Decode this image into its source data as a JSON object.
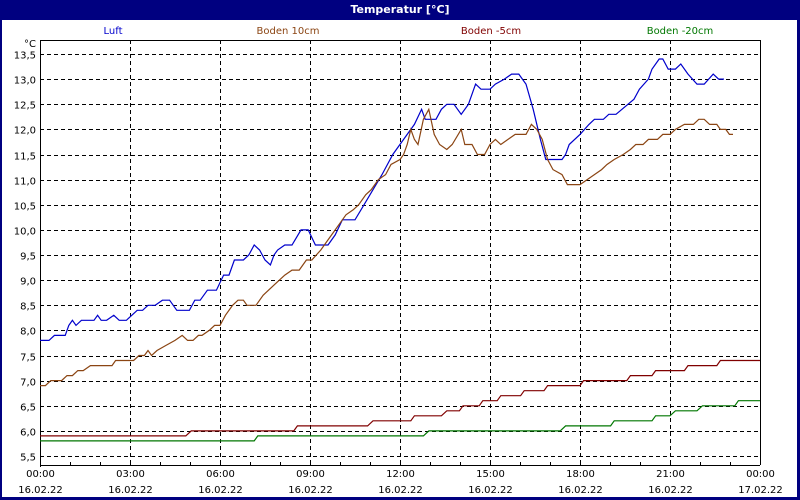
{
  "window": {
    "title": "Temperatur [°C]"
  },
  "chart_data": {
    "type": "line",
    "title": "Temperatur [°C]",
    "ylabel": "°C",
    "xlabel": "",
    "ylim": [
      5.5,
      13.5
    ],
    "y_ticks": [
      "13,5",
      "13,0",
      "12,5",
      "12,0",
      "11,5",
      "11,0",
      "10,5",
      "10,0",
      "9,5",
      "9,0",
      "8,5",
      "8,0",
      "7,5",
      "7,0",
      "6,5",
      "6,0",
      "5,5"
    ],
    "y_tick_values": [
      13.5,
      13.0,
      12.5,
      12.0,
      11.5,
      11.0,
      10.5,
      10.0,
      9.5,
      9.0,
      8.5,
      8.0,
      7.5,
      7.0,
      6.5,
      6.0,
      5.5
    ],
    "x_ticks": [
      {
        "time": "00:00",
        "date": "16.02.22",
        "hour": 0
      },
      {
        "time": "03:00",
        "date": "16.02.22",
        "hour": 3
      },
      {
        "time": "06:00",
        "date": "16.02.22",
        "hour": 6
      },
      {
        "time": "09:00",
        "date": "16.02.22",
        "hour": 9
      },
      {
        "time": "12:00",
        "date": "16.02.22",
        "hour": 12
      },
      {
        "time": "15:00",
        "date": "16.02.22",
        "hour": 15
      },
      {
        "time": "18:00",
        "date": "16.02.22",
        "hour": 18
      },
      {
        "time": "21:00",
        "date": "16.02.22",
        "hour": 21
      },
      {
        "time": "00:00",
        "date": "17.02.22",
        "hour": 24
      }
    ],
    "grid": true,
    "legend_position": "top",
    "series": [
      {
        "name": "Luft",
        "color": "#0000cc",
        "points": [
          [
            0,
            7.8
          ],
          [
            0.5,
            7.8
          ],
          [
            0.8,
            7.9
          ],
          [
            1.4,
            7.9
          ],
          [
            1.6,
            8.1
          ],
          [
            1.8,
            8.2
          ],
          [
            2.0,
            8.1
          ],
          [
            2.3,
            8.2
          ],
          [
            3.0,
            8.2
          ],
          [
            3.2,
            8.3
          ],
          [
            3.4,
            8.2
          ],
          [
            3.7,
            8.2
          ],
          [
            4.1,
            8.3
          ],
          [
            4.4,
            8.2
          ],
          [
            4.8,
            8.2
          ],
          [
            5.4,
            8.4
          ],
          [
            5.7,
            8.4
          ],
          [
            6.0,
            8.5
          ],
          [
            6.4,
            8.5
          ],
          [
            6.8,
            8.6
          ],
          [
            7.2,
            8.6
          ],
          [
            7.6,
            8.4
          ],
          [
            8.0,
            8.4
          ],
          [
            8.3,
            8.4
          ],
          [
            8.6,
            8.6
          ],
          [
            8.9,
            8.6
          ],
          [
            9.3,
            8.8
          ],
          [
            9.8,
            8.8
          ],
          [
            10.2,
            9.1
          ],
          [
            10.5,
            9.1
          ],
          [
            10.8,
            9.4
          ],
          [
            11.3,
            9.4
          ],
          [
            11.6,
            9.5
          ],
          [
            11.9,
            9.7
          ],
          [
            12.2,
            9.6
          ],
          [
            12.5,
            9.4
          ],
          [
            12.8,
            9.3
          ],
          [
            13.0,
            9.5
          ],
          [
            13.2,
            9.6
          ],
          [
            13.6,
            9.7
          ],
          [
            14.0,
            9.7
          ],
          [
            14.5,
            10.0
          ],
          [
            14.9,
            10.0
          ],
          [
            15.3,
            9.7
          ],
          [
            15.7,
            9.7
          ],
          [
            16.0,
            9.7
          ],
          [
            16.4,
            9.9
          ],
          [
            16.8,
            10.2
          ],
          [
            17.5,
            10.2
          ],
          [
            18.0,
            10.5
          ],
          [
            18.5,
            10.8
          ],
          [
            19.0,
            11.1
          ],
          [
            19.6,
            11.5
          ],
          [
            20.2,
            11.8
          ],
          [
            20.6,
            12.0
          ],
          [
            20.8,
            12.1
          ],
          [
            21.2,
            12.4
          ],
          [
            21.4,
            12.2
          ],
          [
            22.0,
            12.2
          ],
          [
            22.3,
            12.4
          ],
          [
            22.6,
            12.5
          ],
          [
            23.0,
            12.5
          ],
          [
            23.4,
            12.3
          ],
          [
            23.8,
            12.5
          ],
          [
            24.2,
            12.9
          ],
          [
            24.5,
            12.8
          ],
          [
            25.0,
            12.8
          ],
          [
            25.3,
            12.9
          ],
          [
            25.8,
            13.0
          ],
          [
            26.2,
            13.1
          ],
          [
            26.6,
            13.1
          ],
          [
            27.0,
            12.9
          ],
          [
            27.4,
            12.4
          ],
          [
            27.8,
            11.8
          ],
          [
            28.1,
            11.4
          ],
          [
            28.6,
            11.4
          ],
          [
            29.0,
            11.4
          ],
          [
            29.2,
            11.5
          ],
          [
            29.4,
            11.7
          ],
          [
            30.0,
            11.9
          ],
          [
            30.5,
            12.1
          ],
          [
            30.8,
            12.2
          ],
          [
            31.3,
            12.2
          ],
          [
            31.6,
            12.3
          ],
          [
            32.0,
            12.3
          ],
          [
            33.0,
            12.6
          ],
          [
            33.3,
            12.8
          ],
          [
            33.8,
            13.0
          ],
          [
            34.0,
            13.2
          ],
          [
            34.4,
            13.4
          ],
          [
            34.6,
            13.4
          ],
          [
            34.9,
            13.2
          ],
          [
            35.3,
            13.2
          ],
          [
            35.6,
            13.3
          ],
          [
            36.0,
            13.1
          ],
          [
            36.5,
            12.9
          ],
          [
            36.9,
            12.9
          ],
          [
            37.4,
            13.1
          ],
          [
            37.7,
            13.0
          ],
          [
            38.0,
            13.0
          ]
        ]
      },
      {
        "name": "Boden 10cm",
        "color": "#8b4513",
        "points": [
          [
            0,
            6.9
          ],
          [
            0.3,
            6.9
          ],
          [
            0.6,
            7.0
          ],
          [
            1.2,
            7.0
          ],
          [
            1.5,
            7.1
          ],
          [
            1.8,
            7.1
          ],
          [
            2.1,
            7.2
          ],
          [
            2.4,
            7.2
          ],
          [
            2.8,
            7.3
          ],
          [
            4.0,
            7.3
          ],
          [
            4.2,
            7.4
          ],
          [
            5.2,
            7.4
          ],
          [
            5.5,
            7.5
          ],
          [
            5.8,
            7.5
          ],
          [
            6.0,
            7.6
          ],
          [
            6.2,
            7.5
          ],
          [
            6.5,
            7.6
          ],
          [
            7.0,
            7.7
          ],
          [
            7.5,
            7.8
          ],
          [
            7.9,
            7.9
          ],
          [
            8.2,
            7.8
          ],
          [
            8.5,
            7.8
          ],
          [
            8.8,
            7.9
          ],
          [
            9.0,
            7.9
          ],
          [
            9.4,
            8.0
          ],
          [
            9.7,
            8.1
          ],
          [
            10.0,
            8.1
          ],
          [
            10.3,
            8.3
          ],
          [
            10.7,
            8.5
          ],
          [
            11.0,
            8.6
          ],
          [
            11.3,
            8.6
          ],
          [
            11.5,
            8.5
          ],
          [
            12.0,
            8.5
          ],
          [
            12.4,
            8.7
          ],
          [
            13.0,
            8.9
          ],
          [
            13.6,
            9.1
          ],
          [
            14.0,
            9.2
          ],
          [
            14.4,
            9.2
          ],
          [
            14.8,
            9.4
          ],
          [
            15.1,
            9.4
          ],
          [
            15.6,
            9.6
          ],
          [
            16.0,
            9.8
          ],
          [
            16.4,
            10.0
          ],
          [
            16.8,
            10.2
          ],
          [
            17.0,
            10.3
          ],
          [
            17.4,
            10.4
          ],
          [
            17.7,
            10.5
          ],
          [
            18.1,
            10.7
          ],
          [
            18.4,
            10.8
          ],
          [
            18.8,
            11.0
          ],
          [
            19.2,
            11.1
          ],
          [
            19.5,
            11.3
          ],
          [
            20.0,
            11.4
          ],
          [
            20.2,
            11.5
          ],
          [
            20.4,
            11.7
          ],
          [
            20.6,
            12.0
          ],
          [
            20.8,
            11.8
          ],
          [
            21.0,
            11.7
          ],
          [
            21.3,
            12.2
          ],
          [
            21.6,
            12.4
          ],
          [
            21.9,
            11.9
          ],
          [
            22.2,
            11.7
          ],
          [
            22.6,
            11.6
          ],
          [
            22.9,
            11.7
          ],
          [
            23.4,
            12.0
          ],
          [
            23.6,
            11.7
          ],
          [
            24.0,
            11.7
          ],
          [
            24.3,
            11.5
          ],
          [
            24.7,
            11.5
          ],
          [
            25.0,
            11.7
          ],
          [
            25.3,
            11.8
          ],
          [
            25.6,
            11.7
          ],
          [
            26.0,
            11.8
          ],
          [
            26.4,
            11.9
          ],
          [
            27.0,
            11.9
          ],
          [
            27.3,
            12.1
          ],
          [
            27.6,
            12.0
          ],
          [
            27.9,
            11.8
          ],
          [
            28.2,
            11.4
          ],
          [
            28.5,
            11.2
          ],
          [
            29.0,
            11.1
          ],
          [
            29.3,
            10.9
          ],
          [
            30.0,
            10.9
          ],
          [
            30.4,
            11.0
          ],
          [
            30.8,
            11.1
          ],
          [
            31.2,
            11.2
          ],
          [
            31.5,
            11.3
          ],
          [
            31.9,
            11.4
          ],
          [
            32.4,
            11.5
          ],
          [
            32.8,
            11.6
          ],
          [
            33.1,
            11.7
          ],
          [
            33.5,
            11.7
          ],
          [
            33.8,
            11.8
          ],
          [
            34.3,
            11.8
          ],
          [
            34.6,
            11.9
          ],
          [
            35.0,
            11.9
          ],
          [
            35.3,
            12.0
          ],
          [
            35.8,
            12.1
          ],
          [
            36.3,
            12.1
          ],
          [
            36.6,
            12.2
          ],
          [
            36.9,
            12.2
          ],
          [
            37.2,
            12.1
          ],
          [
            37.6,
            12.1
          ],
          [
            37.8,
            12.0
          ],
          [
            38.1,
            12.0
          ],
          [
            38.3,
            11.9
          ],
          [
            38.5,
            11.9
          ]
        ]
      },
      {
        "name": "Boden -5cm",
        "color": "#800000",
        "points": [
          [
            0,
            5.9
          ],
          [
            8.1,
            5.9
          ],
          [
            8.4,
            6.0
          ],
          [
            14.1,
            6.0
          ],
          [
            14.3,
            6.1
          ],
          [
            18.2,
            6.1
          ],
          [
            18.5,
            6.2
          ],
          [
            20.6,
            6.2
          ],
          [
            20.8,
            6.3
          ],
          [
            22.3,
            6.3
          ],
          [
            22.6,
            6.4
          ],
          [
            23.3,
            6.4
          ],
          [
            23.5,
            6.5
          ],
          [
            24.4,
            6.5
          ],
          [
            24.6,
            6.6
          ],
          [
            25.4,
            6.6
          ],
          [
            25.6,
            6.7
          ],
          [
            26.7,
            6.7
          ],
          [
            26.9,
            6.8
          ],
          [
            28.0,
            6.8
          ],
          [
            28.2,
            6.9
          ],
          [
            30.0,
            6.9
          ],
          [
            30.2,
            7.0
          ],
          [
            32.6,
            7.0
          ],
          [
            32.8,
            7.1
          ],
          [
            34.0,
            7.1
          ],
          [
            34.2,
            7.2
          ],
          [
            35.8,
            7.2
          ],
          [
            36.0,
            7.3
          ],
          [
            37.6,
            7.3
          ],
          [
            37.8,
            7.4
          ],
          [
            40,
            7.4
          ]
        ]
      },
      {
        "name": "Boden -20cm",
        "color": "#007700",
        "points": [
          [
            0,
            5.8
          ],
          [
            11.9,
            5.8
          ],
          [
            12.1,
            5.9
          ],
          [
            21.3,
            5.9
          ],
          [
            21.6,
            6.0
          ],
          [
            28.9,
            6.0
          ],
          [
            29.2,
            6.1
          ],
          [
            31.7,
            6.1
          ],
          [
            31.9,
            6.2
          ],
          [
            34.0,
            6.2
          ],
          [
            34.2,
            6.3
          ],
          [
            35.0,
            6.3
          ],
          [
            35.3,
            6.4
          ],
          [
            36.5,
            6.4
          ],
          [
            36.8,
            6.5
          ],
          [
            38.6,
            6.5
          ],
          [
            38.8,
            6.6
          ],
          [
            40,
            6.6
          ]
        ]
      }
    ]
  }
}
